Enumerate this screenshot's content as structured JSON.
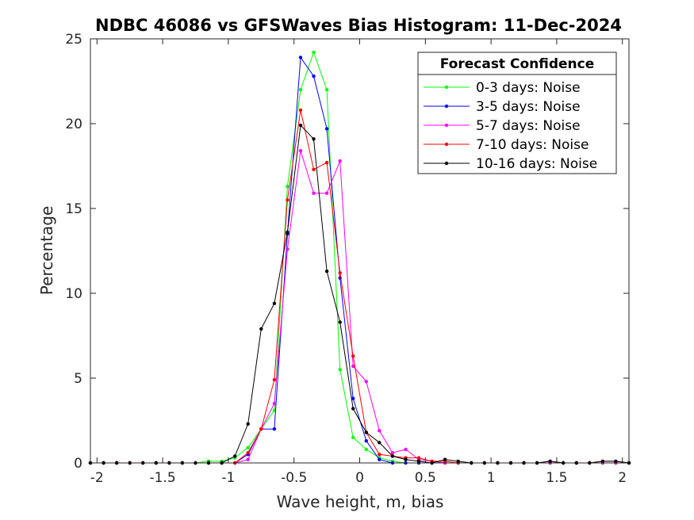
{
  "chart_data": {
    "type": "line",
    "title": "NDBC 46086 vs GFSWaves Bias Histogram: 11-Dec-2024",
    "xlabel": "Wave height, m, bias",
    "ylabel": "Percentage",
    "xlim": [
      -2.05,
      2.05
    ],
    "ylim": [
      0,
      25
    ],
    "xticks": [
      -2,
      -1.5,
      -1,
      -0.5,
      0,
      0.5,
      1,
      1.5,
      2
    ],
    "xtick_labels": [
      "-2",
      "-1.5",
      "-1",
      "-0.5",
      "0",
      "0.5",
      "1",
      "1.5",
      "2"
    ],
    "yticks": [
      0,
      5,
      10,
      15,
      20,
      25
    ],
    "ytick_labels": [
      "0",
      "5",
      "10",
      "15",
      "20",
      "25"
    ],
    "grid": false,
    "legend": {
      "title": "Forecast Confidence",
      "placement": "top-right"
    },
    "x": [
      -2.05,
      -1.95,
      -1.85,
      -1.75,
      -1.65,
      -1.55,
      -1.45,
      -1.35,
      -1.25,
      -1.15,
      -1.05,
      -0.95,
      -0.85,
      -0.75,
      -0.65,
      -0.55,
      -0.45,
      -0.35,
      -0.25,
      -0.15,
      -0.05,
      0.05,
      0.15,
      0.25,
      0.35,
      0.45,
      0.55,
      0.65,
      0.75,
      0.85,
      0.95,
      1.05,
      1.15,
      1.25,
      1.35,
      1.45,
      1.55,
      1.65,
      1.75,
      1.85,
      1.95,
      2.05
    ],
    "series": [
      {
        "name": "0-3 days: Noise",
        "color": "#00ff00",
        "values": [
          0,
          0,
          0,
          0,
          0,
          0,
          0,
          0,
          0,
          0.1,
          0.1,
          0.3,
          0.9,
          2.0,
          3.1,
          16.3,
          22.0,
          24.2,
          22.0,
          5.5,
          1.5,
          0.8,
          0.3,
          0.1,
          0,
          0,
          0,
          0,
          0,
          0,
          0,
          0,
          0,
          0,
          0,
          0,
          0,
          0,
          0,
          0,
          0,
          0
        ]
      },
      {
        "name": "3-5 days: Noise",
        "color": "#0000ff",
        "values": [
          0,
          0,
          0,
          0,
          0,
          0,
          0,
          0,
          0,
          0,
          0,
          0,
          0.5,
          2.0,
          2.0,
          13.5,
          23.9,
          22.8,
          19.7,
          10.9,
          3.8,
          1.3,
          0.2,
          0,
          0,
          0,
          0,
          0,
          0,
          0,
          0,
          0,
          0,
          0,
          0,
          0,
          0,
          0,
          0,
          0,
          0,
          0
        ]
      },
      {
        "name": "5-7 days: Noise",
        "color": "#ff00ff",
        "values": [
          0,
          0,
          0,
          0,
          0,
          0,
          0,
          0,
          0,
          0,
          0,
          0,
          0.2,
          2.0,
          3.5,
          12.6,
          18.4,
          15.9,
          15.9,
          17.8,
          5.7,
          4.8,
          1.9,
          0.6,
          0.8,
          0.2,
          0.1,
          0,
          0,
          0,
          0,
          0,
          0,
          0,
          0,
          0,
          0,
          0,
          0,
          0,
          0,
          0
        ]
      },
      {
        "name": "7-10 days: Noise",
        "color": "#ff0000",
        "values": [
          0,
          0,
          0,
          0,
          0,
          0,
          0,
          0,
          0,
          0,
          0,
          0,
          0.6,
          2.0,
          4.9,
          15.5,
          20.8,
          17.3,
          17.7,
          11.2,
          6.3,
          1.8,
          0.5,
          0.4,
          0.3,
          0.3,
          0.1,
          0.1,
          0,
          0,
          0,
          0,
          0,
          0,
          0,
          0.1,
          0,
          0,
          0,
          0.1,
          0.1,
          0
        ]
      },
      {
        "name": "10-16 days: Noise",
        "color": "#000000",
        "values": [
          0,
          0,
          0,
          0,
          0,
          0,
          0,
          0,
          0,
          0,
          0,
          0.4,
          2.3,
          7.9,
          9.4,
          13.6,
          19.9,
          19.1,
          11.3,
          8.3,
          3.2,
          1.8,
          1.2,
          0.4,
          0.2,
          0.1,
          0,
          0.2,
          0.1,
          0,
          0,
          0,
          0,
          0,
          0,
          0.1,
          0,
          0,
          0,
          0.1,
          0.1,
          0
        ]
      }
    ]
  }
}
